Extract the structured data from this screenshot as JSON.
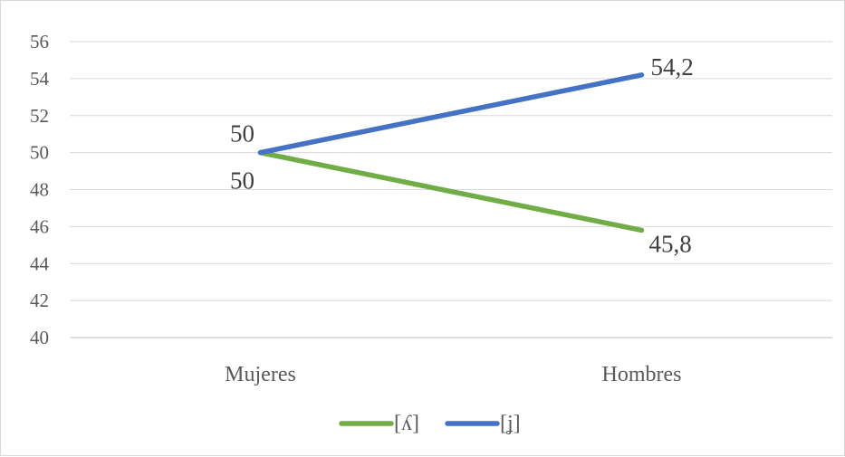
{
  "chart_data": {
    "type": "line",
    "categories": [
      "Mujeres",
      "Hombres"
    ],
    "series": [
      {
        "name": "[ʎ]",
        "values": [
          50,
          45.8
        ],
        "color": "#70ad47",
        "labels": [
          "50",
          "45,8"
        ]
      },
      {
        "name": "[ʝ]",
        "values": [
          50,
          54.2
        ],
        "color": "#4472c4",
        "labels": [
          "50",
          "54,2"
        ]
      }
    ],
    "ylim": [
      40,
      56
    ],
    "yticks": [
      "40",
      "42",
      "44",
      "46",
      "48",
      "50",
      "52",
      "54",
      "56"
    ],
    "grid": true,
    "legend": "bottom",
    "title": "",
    "xlabel": "",
    "ylabel": ""
  }
}
